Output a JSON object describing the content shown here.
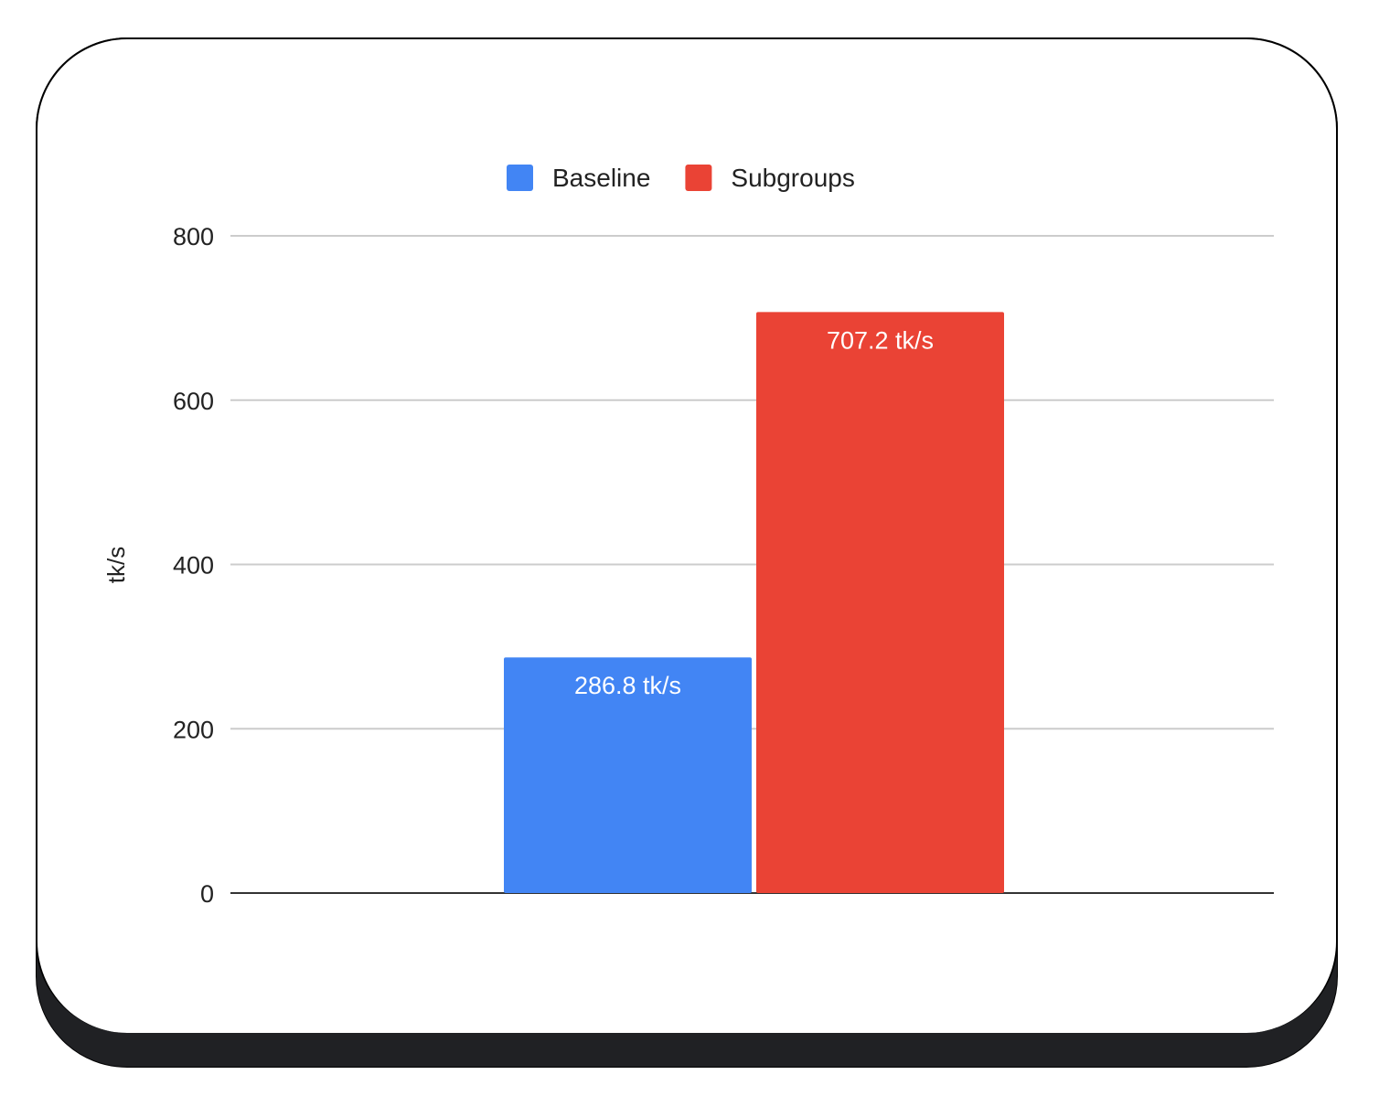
{
  "chart_data": {
    "type": "bar",
    "categories": [
      ""
    ],
    "series": [
      {
        "name": "Baseline",
        "values": [
          286.8
        ],
        "color": "#4285f4",
        "label": "286.8 tk/s"
      },
      {
        "name": "Subgroups",
        "values": [
          707.2
        ],
        "color": "#ea4335",
        "label": "707.2 tk/s"
      }
    ],
    "ylabel": "tk/s",
    "xlabel": "",
    "ylim": [
      0,
      800
    ],
    "yticks": [
      "0",
      "200",
      "400",
      "600",
      "800"
    ],
    "grid": true,
    "legend": "top"
  }
}
